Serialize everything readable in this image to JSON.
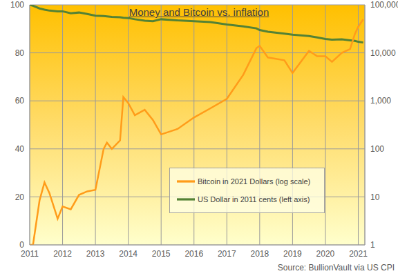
{
  "chart_data": {
    "type": "line",
    "title": "Money and Bitcoin vs. inflation",
    "source": "Source: BullionVault via US CPI",
    "x": [
      2011.0,
      2011.1,
      2011.3,
      2011.45,
      2011.6,
      2011.85,
      2012.0,
      2012.25,
      2012.5,
      2012.75,
      2013.0,
      2013.25,
      2013.35,
      2013.5,
      2013.75,
      2013.85,
      2014.0,
      2014.2,
      2014.5,
      2014.75,
      2015.0,
      2015.5,
      2016.0,
      2016.5,
      2017.0,
      2017.5,
      2017.9,
      2018.0,
      2018.25,
      2018.75,
      2019.0,
      2019.5,
      2019.75,
      2020.0,
      2020.2,
      2020.5,
      2020.75,
      2020.9,
      2021.0,
      2021.15
    ],
    "series": [
      {
        "name": "US Dollar in 2011 cents (left axis)",
        "color": "#548235",
        "values": [
          100,
          99.6,
          98.5,
          98,
          97.6,
          97.3,
          97.3,
          96.5,
          96.8,
          96.2,
          95.5,
          95.3,
          95.2,
          95,
          94.8,
          94.6,
          94.5,
          94,
          93.4,
          93.2,
          94,
          93.5,
          93.2,
          92.8,
          91.8,
          91,
          90.2,
          89.5,
          88.8,
          88,
          87.6,
          87,
          86.4,
          85.8,
          85.5,
          85.6,
          85.2,
          85,
          84.6,
          84.3
        ]
      },
      {
        "name": "Bitcoin in 2021 Dollars (log scale)",
        "color": "#FF9C1A",
        "axis": "y2",
        "values": [
          1,
          1,
          8.5,
          20,
          12,
          3.5,
          6.3,
          5.5,
          11,
          13,
          14,
          100,
          135,
          100,
          150,
          1200,
          900,
          500,
          650,
          400,
          200,
          260,
          450,
          700,
          1100,
          3500,
          12500,
          14000,
          8000,
          7000,
          3800,
          11000,
          8500,
          8500,
          6500,
          10000,
          12000,
          25000,
          35000,
          50000
        ]
      }
    ],
    "xlim": [
      2011,
      2021.2
    ],
    "xticks": [
      2011,
      2012,
      2013,
      2014,
      2015,
      2016,
      2017,
      2018,
      2019,
      2020,
      2021
    ],
    "ylim": [
      0,
      100
    ],
    "yticks": [
      0,
      20,
      40,
      60,
      80,
      100
    ],
    "y2lim": [
      1,
      100000
    ],
    "y2ticks": [
      1,
      10,
      100,
      {
        "value": 1000,
        "label": "1,000"
      },
      {
        "value": 10000,
        "label": "10,000"
      },
      {
        "value": 100000,
        "label": "100,000"
      }
    ],
    "log": "y2",
    "grid": true,
    "legend": "lower right"
  }
}
